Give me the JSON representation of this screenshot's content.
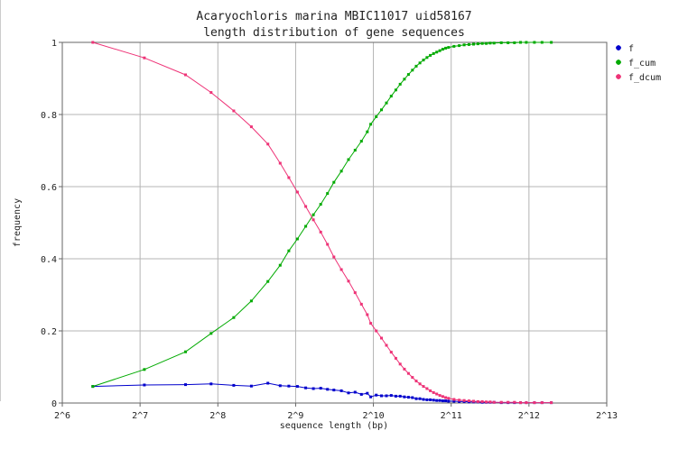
{
  "chart_data": {
    "type": "line",
    "title": [
      "Acaryochloris marina MBIC11017 uid58167",
      "length distribution of gene sequences"
    ],
    "xlabel": "sequence length (bp)",
    "ylabel": "frequency",
    "x_scale": "log2",
    "xlim": [
      64,
      8192
    ],
    "ylim": [
      0,
      1
    ],
    "x_ticks": [
      "2^6",
      "2^7",
      "2^8",
      "2^9",
      "2^10",
      "2^11",
      "2^12",
      "2^13"
    ],
    "y_ticks": [
      "0",
      "0.2",
      "0.4",
      "0.6",
      "0.8",
      "1"
    ],
    "grid": true,
    "legend_position": "top-right",
    "series": [
      {
        "name": "f",
        "color": "#0000cc",
        "points": [
          [
            84,
            0.046
          ],
          [
            133,
            0.05
          ],
          [
            192,
            0.051
          ],
          [
            241,
            0.053
          ],
          [
            295,
            0.049
          ],
          [
            345,
            0.047
          ],
          [
            400,
            0.055
          ],
          [
            446,
            0.048
          ],
          [
            482,
            0.047
          ],
          [
            520,
            0.046
          ],
          [
            560,
            0.042
          ],
          [
            600,
            0.04
          ],
          [
            640,
            0.041
          ],
          [
            680,
            0.038
          ],
          [
            720,
            0.036
          ],
          [
            770,
            0.034
          ],
          [
            820,
            0.028
          ],
          [
            870,
            0.03
          ],
          [
            920,
            0.024
          ],
          [
            970,
            0.027
          ],
          [
            1000,
            0.017
          ],
          [
            1050,
            0.022
          ],
          [
            1100,
            0.02
          ],
          [
            1150,
            0.02
          ],
          [
            1200,
            0.021
          ],
          [
            1250,
            0.019
          ],
          [
            1300,
            0.019
          ],
          [
            1350,
            0.017
          ],
          [
            1400,
            0.016
          ],
          [
            1450,
            0.015
          ],
          [
            1500,
            0.012
          ],
          [
            1550,
            0.012
          ],
          [
            1600,
            0.01
          ],
          [
            1650,
            0.009
          ],
          [
            1700,
            0.009
          ],
          [
            1750,
            0.008
          ],
          [
            1800,
            0.007
          ],
          [
            1850,
            0.007
          ],
          [
            1900,
            0.006
          ],
          [
            1950,
            0.006
          ],
          [
            2000,
            0.005
          ],
          [
            2100,
            0.005
          ],
          [
            2200,
            0.004
          ],
          [
            2300,
            0.004
          ],
          [
            2400,
            0.003
          ],
          [
            2500,
            0.003
          ],
          [
            2600,
            0.003
          ],
          [
            2700,
            0.002
          ],
          [
            2800,
            0.002
          ],
          [
            2900,
            0.002
          ],
          [
            3000,
            0.002
          ],
          [
            3200,
            0.001
          ],
          [
            3400,
            0.001
          ],
          [
            3600,
            0.001
          ],
          [
            3800,
            0.001
          ],
          [
            4000,
            0.001
          ],
          [
            4300,
            0.001
          ],
          [
            4600,
            0.001
          ],
          [
            5000,
            0.001
          ]
        ]
      },
      {
        "name": "f_cum",
        "color": "#00aa00",
        "points": [
          [
            84,
            0.046
          ],
          [
            133,
            0.093
          ],
          [
            192,
            0.142
          ],
          [
            241,
            0.193
          ],
          [
            295,
            0.237
          ],
          [
            345,
            0.283
          ],
          [
            400,
            0.337
          ],
          [
            446,
            0.382
          ],
          [
            482,
            0.422
          ],
          [
            520,
            0.455
          ],
          [
            560,
            0.49
          ],
          [
            600,
            0.522
          ],
          [
            640,
            0.551
          ],
          [
            680,
            0.581
          ],
          [
            720,
            0.612
          ],
          [
            770,
            0.643
          ],
          [
            820,
            0.675
          ],
          [
            870,
            0.701
          ],
          [
            920,
            0.726
          ],
          [
            970,
            0.752
          ],
          [
            1000,
            0.773
          ],
          [
            1050,
            0.794
          ],
          [
            1100,
            0.813
          ],
          [
            1150,
            0.832
          ],
          [
            1200,
            0.851
          ],
          [
            1250,
            0.868
          ],
          [
            1300,
            0.884
          ],
          [
            1350,
            0.898
          ],
          [
            1400,
            0.911
          ],
          [
            1450,
            0.923
          ],
          [
            1500,
            0.934
          ],
          [
            1550,
            0.943
          ],
          [
            1600,
            0.951
          ],
          [
            1650,
            0.958
          ],
          [
            1700,
            0.964
          ],
          [
            1750,
            0.969
          ],
          [
            1800,
            0.973
          ],
          [
            1850,
            0.977
          ],
          [
            1900,
            0.981
          ],
          [
            1950,
            0.984
          ],
          [
            2000,
            0.986
          ],
          [
            2100,
            0.989
          ],
          [
            2200,
            0.991
          ],
          [
            2300,
            0.993
          ],
          [
            2400,
            0.994
          ],
          [
            2500,
            0.995
          ],
          [
            2600,
            0.996
          ],
          [
            2700,
            0.997
          ],
          [
            2800,
            0.997
          ],
          [
            2900,
            0.998
          ],
          [
            3000,
            0.998
          ],
          [
            3200,
            0.999
          ],
          [
            3400,
            0.999
          ],
          [
            3600,
            0.999
          ],
          [
            3800,
            1.0
          ],
          [
            4000,
            1.0
          ],
          [
            4300,
            1.0
          ],
          [
            4600,
            1.0
          ],
          [
            5000,
            1.0
          ]
        ]
      },
      {
        "name": "f_dcum",
        "color": "#ee3377",
        "points": [
          [
            84,
            1.0
          ],
          [
            133,
            0.957
          ],
          [
            192,
            0.91
          ],
          [
            241,
            0.861
          ],
          [
            295,
            0.81
          ],
          [
            345,
            0.766
          ],
          [
            400,
            0.718
          ],
          [
            446,
            0.665
          ],
          [
            482,
            0.625
          ],
          [
            520,
            0.585
          ],
          [
            560,
            0.545
          ],
          [
            600,
            0.508
          ],
          [
            640,
            0.474
          ],
          [
            680,
            0.44
          ],
          [
            720,
            0.405
          ],
          [
            770,
            0.37
          ],
          [
            820,
            0.338
          ],
          [
            870,
            0.306
          ],
          [
            920,
            0.274
          ],
          [
            970,
            0.245
          ],
          [
            1000,
            0.221
          ],
          [
            1050,
            0.2
          ],
          [
            1100,
            0.18
          ],
          [
            1150,
            0.16
          ],
          [
            1200,
            0.141
          ],
          [
            1250,
            0.124
          ],
          [
            1300,
            0.108
          ],
          [
            1350,
            0.094
          ],
          [
            1400,
            0.082
          ],
          [
            1450,
            0.071
          ],
          [
            1500,
            0.061
          ],
          [
            1550,
            0.053
          ],
          [
            1600,
            0.046
          ],
          [
            1650,
            0.04
          ],
          [
            1700,
            0.034
          ],
          [
            1750,
            0.029
          ],
          [
            1800,
            0.025
          ],
          [
            1850,
            0.021
          ],
          [
            1900,
            0.018
          ],
          [
            1950,
            0.015
          ],
          [
            2000,
            0.013
          ],
          [
            2100,
            0.01
          ],
          [
            2200,
            0.008
          ],
          [
            2300,
            0.007
          ],
          [
            2400,
            0.006
          ],
          [
            2500,
            0.005
          ],
          [
            2600,
            0.004
          ],
          [
            2700,
            0.004
          ],
          [
            2800,
            0.003
          ],
          [
            2900,
            0.003
          ],
          [
            3000,
            0.002
          ],
          [
            3200,
            0.002
          ],
          [
            3400,
            0.002
          ],
          [
            3600,
            0.002
          ],
          [
            3800,
            0.001
          ],
          [
            4000,
            0.001
          ],
          [
            4300,
            0.001
          ],
          [
            4600,
            0.001
          ],
          [
            5000,
            0.001
          ]
        ]
      }
    ]
  }
}
